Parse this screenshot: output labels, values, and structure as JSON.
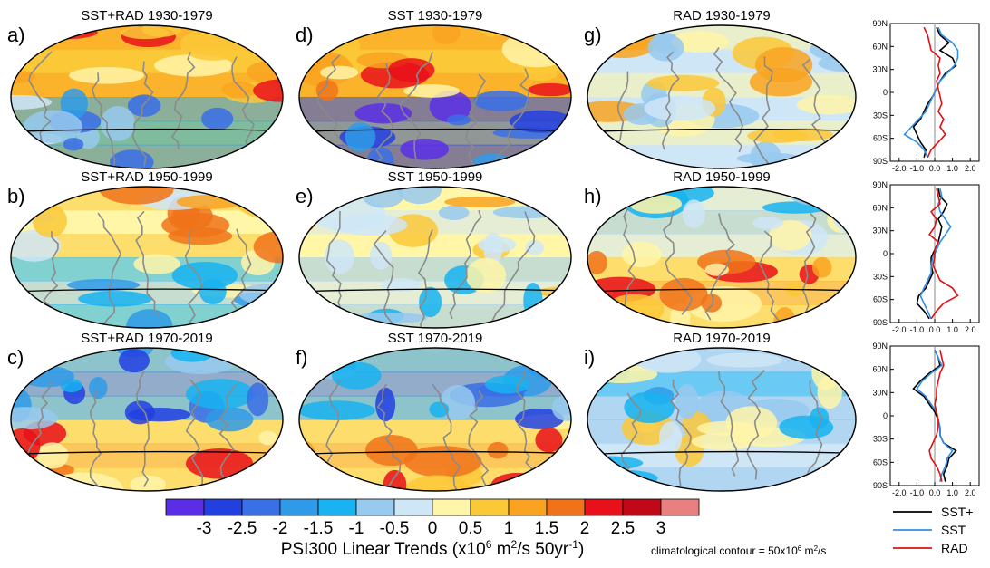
{
  "chart_data": {
    "type": "map-grid-with-zonal-profiles",
    "colorbar": {
      "title": "PSI300 Linear Trends (x10",
      "title_exp1": "6",
      "title_mid": " m",
      "title_exp2": "2",
      "title_mid2": "/s 50yr",
      "title_exp3": "-1",
      "title_end": ")",
      "ticks": [
        "-3",
        "-2.5",
        "-2",
        "-1.5",
        "-1",
        "-0.5",
        "0",
        "0.5",
        "1",
        "1.5",
        "2",
        "2.5",
        "3"
      ],
      "colors": [
        "#5a2ee6",
        "#2240e0",
        "#3a6fe6",
        "#2f9be8",
        "#18b3f0",
        "#98c9ee",
        "#cfe6f7",
        "#fff5a8",
        "#fbc838",
        "#f9a321",
        "#f0731a",
        "#e8101a",
        "#c00818",
        "#e88080"
      ]
    },
    "note": "climatological contour = 50x10",
    "note_exp": "6",
    "note_end": " m",
    "note_exp2": "2",
    "note_end2": "/s",
    "maps": [
      {
        "label": "a)",
        "title": "SST+RAD 1930-1979"
      },
      {
        "label": "d)",
        "title": "SST 1930-1979"
      },
      {
        "label": "g)",
        "title": "RAD 1930-1979"
      },
      {
        "label": "b)",
        "title": "SST+RAD 1950-1999"
      },
      {
        "label": "e)",
        "title": "SST 1950-1999"
      },
      {
        "label": "h)",
        "title": "RAD 1950-1999"
      },
      {
        "label": "c)",
        "title": "SST+RAD 1970-2019"
      },
      {
        "label": "f)",
        "title": "SST 1970-2019"
      },
      {
        "label": "i)",
        "title": "RAD 1970-2019"
      }
    ],
    "profile_axes": {
      "yticks": [
        "90N",
        "60N",
        "30N",
        "0",
        "30S",
        "60S",
        "90S"
      ],
      "ylim": [
        -90,
        90
      ],
      "xticks": [
        "-2.0",
        "-1.0",
        "0.0",
        "1.0",
        "2.0"
      ],
      "xlim": [
        -2.5,
        2.5
      ]
    },
    "profiles": [
      {
        "period": "1930-1979",
        "series": [
          {
            "name": "SST+",
            "color": "#000000",
            "lat": [
              85,
              75,
              65,
              55,
              45,
              35,
              25,
              15,
              5,
              -5,
              -15,
              -25,
              -35,
              -45,
              -55,
              -65,
              -75,
              -85
            ],
            "values": [
              0.1,
              0.3,
              0.8,
              0.3,
              1.0,
              1.2,
              0.6,
              0.3,
              0.1,
              -0.1,
              -0.4,
              -0.6,
              -0.8,
              -1.2,
              -1.0,
              -0.8,
              -0.5,
              -0.6
            ]
          },
          {
            "name": "SST",
            "color": "#2f8fe6",
            "lat": [
              85,
              75,
              65,
              55,
              45,
              35,
              25,
              15,
              5,
              -5,
              -15,
              -25,
              -35,
              -45,
              -55,
              -65,
              -75,
              -85
            ],
            "values": [
              0.2,
              0.4,
              1.0,
              1.3,
              1.3,
              1.1,
              0.7,
              0.3,
              0.1,
              -0.1,
              -0.3,
              -0.5,
              -0.9,
              -1.3,
              -1.7,
              -1.0,
              -0.6,
              -0.4
            ]
          },
          {
            "name": "RAD",
            "color": "#e01010",
            "lat": [
              85,
              75,
              65,
              55,
              45,
              35,
              25,
              15,
              5,
              -5,
              -15,
              -25,
              -35,
              -45,
              -55,
              -65,
              -75,
              -85
            ],
            "values": [
              -0.6,
              -0.4,
              -0.3,
              -0.2,
              0.3,
              0.2,
              0.3,
              0.1,
              0.2,
              0.3,
              0.4,
              0.2,
              0.5,
              0.3,
              0.6,
              0.2,
              -0.2,
              -0.4
            ]
          }
        ]
      },
      {
        "period": "1950-1999",
        "series": [
          {
            "name": "SST+",
            "color": "#000000",
            "lat": [
              85,
              75,
              65,
              55,
              45,
              35,
              25,
              15,
              5,
              -5,
              -15,
              -25,
              -35,
              -45,
              -55,
              -65,
              -75,
              -85
            ],
            "values": [
              0.2,
              0.3,
              0.7,
              0.5,
              0.2,
              0.4,
              0.3,
              0.2,
              0.0,
              -0.2,
              -0.2,
              -0.1,
              -0.3,
              -0.5,
              -0.9,
              -1.0,
              -0.6,
              -0.3
            ]
          },
          {
            "name": "SST",
            "color": "#2f8fe6",
            "lat": [
              85,
              75,
              65,
              55,
              45,
              35,
              25,
              15,
              5,
              -5,
              -15,
              -25,
              -35,
              -45,
              -55,
              -65,
              -75,
              -85
            ],
            "values": [
              0.3,
              0.4,
              0.2,
              0.3,
              0.6,
              0.9,
              0.6,
              0.3,
              0.1,
              -0.1,
              -0.2,
              -0.2,
              -0.4,
              -0.6,
              -0.8,
              -0.6,
              -0.4,
              -0.2
            ]
          },
          {
            "name": "RAD",
            "color": "#e01010",
            "lat": [
              85,
              75,
              65,
              55,
              45,
              35,
              25,
              15,
              5,
              -5,
              -15,
              -25,
              -35,
              -45,
              -55,
              -65,
              -75,
              -85
            ],
            "values": [
              0.1,
              0.2,
              0.3,
              -0.2,
              0.1,
              0.0,
              -0.3,
              0.2,
              0.0,
              0.0,
              -0.1,
              0.1,
              0.3,
              1.0,
              1.3,
              0.5,
              0.1,
              -0.2
            ]
          }
        ]
      },
      {
        "period": "1970-2019",
        "series": [
          {
            "name": "SST+",
            "color": "#000000",
            "lat": [
              85,
              75,
              65,
              55,
              45,
              35,
              25,
              15,
              5,
              -5,
              -15,
              -25,
              -35,
              -45,
              -55,
              -65,
              -75,
              -85
            ],
            "values": [
              0.0,
              0.2,
              0.3,
              -0.3,
              -0.8,
              -1.2,
              -0.6,
              -0.3,
              0.0,
              0.2,
              0.3,
              0.3,
              0.5,
              1.2,
              0.8,
              0.7,
              0.5,
              0.6
            ]
          },
          {
            "name": "SST",
            "color": "#2f8fe6",
            "lat": [
              85,
              75,
              65,
              55,
              45,
              35,
              25,
              15,
              5,
              -5,
              -15,
              -25,
              -35,
              -45,
              -55,
              -65,
              -75,
              -85
            ],
            "values": [
              0.0,
              0.2,
              0.4,
              -0.2,
              -0.7,
              -1.0,
              -0.5,
              -0.2,
              0.1,
              0.2,
              0.3,
              0.3,
              0.5,
              1.0,
              0.7,
              0.6,
              0.4,
              0.3
            ]
          },
          {
            "name": "RAD",
            "color": "#e01010",
            "lat": [
              85,
              75,
              65,
              55,
              45,
              35,
              25,
              15,
              5,
              -5,
              -15,
              -25,
              -35,
              -45,
              -55,
              -65,
              -75,
              -85
            ],
            "values": [
              0.3,
              0.4,
              0.5,
              0.3,
              0.2,
              0.1,
              0.1,
              0.0,
              0.1,
              0.2,
              0.2,
              0.1,
              -0.1,
              -0.3,
              -0.2,
              0.1,
              0.3,
              0.4
            ]
          }
        ]
      }
    ],
    "legend": [
      "SST+",
      "SST",
      "RAD"
    ]
  }
}
